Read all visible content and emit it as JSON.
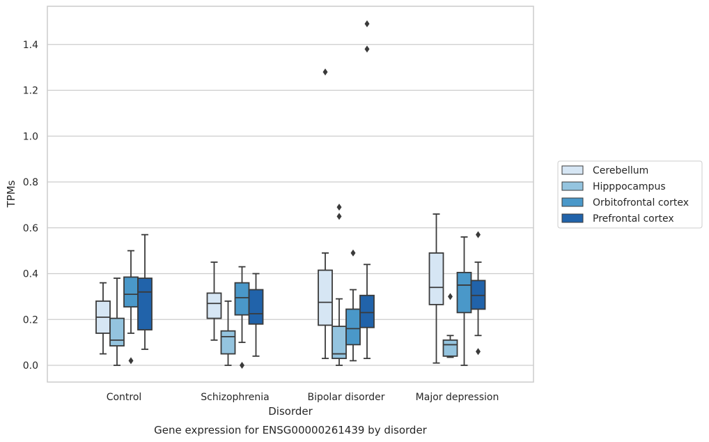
{
  "chart_data": {
    "type": "boxplot",
    "title": "Gene expression for ENSG00000261439 by disorder",
    "xlabel": "Disorder",
    "ylabel": "TPMs",
    "ylim": [
      -0.07,
      1.57
    ],
    "yticks": [
      "0.0",
      "0.2",
      "0.4",
      "0.6",
      "0.8",
      "1.0",
      "1.2",
      "1.4"
    ],
    "ytick_values": [
      0.0,
      0.2,
      0.4,
      0.6,
      0.8,
      1.0,
      1.2,
      1.4
    ],
    "grid": "horizontal",
    "legend_position": "right",
    "categories": [
      "Control",
      "Schizophrenia",
      "Bipolar disorder",
      "Major depression"
    ],
    "series": [
      {
        "name": "Cerebellum",
        "color": "#d6e6f4",
        "boxes": [
          {
            "whislo": 0.05,
            "q1": 0.14,
            "med": 0.21,
            "q3": 0.28,
            "whishi": 0.36,
            "fliers": []
          },
          {
            "whislo": 0.11,
            "q1": 0.205,
            "med": 0.27,
            "q3": 0.315,
            "whishi": 0.45,
            "fliers": []
          },
          {
            "whislo": 0.03,
            "q1": 0.175,
            "med": 0.275,
            "q3": 0.415,
            "whishi": 0.49,
            "fliers": [
              1.28
            ]
          },
          {
            "whislo": 0.01,
            "q1": 0.265,
            "med": 0.34,
            "q3": 0.49,
            "whishi": 0.66,
            "fliers": []
          }
        ]
      },
      {
        "name": "Hipppocampus",
        "color": "#94c4df",
        "boxes": [
          {
            "whislo": 0.0,
            "q1": 0.085,
            "med": 0.11,
            "q3": 0.205,
            "whishi": 0.38,
            "fliers": []
          },
          {
            "whislo": 0.0,
            "q1": 0.05,
            "med": 0.125,
            "q3": 0.15,
            "whishi": 0.28,
            "fliers": []
          },
          {
            "whislo": 0.0,
            "q1": 0.03,
            "med": 0.05,
            "q3": 0.17,
            "whishi": 0.29,
            "fliers": [
              0.65,
              0.69
            ]
          },
          {
            "whislo": 0.035,
            "q1": 0.04,
            "med": 0.09,
            "q3": 0.11,
            "whishi": 0.13,
            "fliers": [
              0.3
            ]
          }
        ]
      },
      {
        "name": "Orbitofrontal cortex",
        "color": "#4a98c9",
        "boxes": [
          {
            "whislo": 0.14,
            "q1": 0.255,
            "med": 0.31,
            "q3": 0.385,
            "whishi": 0.5,
            "fliers": [
              0.02
            ]
          },
          {
            "whislo": 0.1,
            "q1": 0.22,
            "med": 0.295,
            "q3": 0.36,
            "whishi": 0.43,
            "fliers": [
              0.0
            ]
          },
          {
            "whislo": 0.02,
            "q1": 0.09,
            "med": 0.16,
            "q3": 0.245,
            "whishi": 0.33,
            "fliers": [
              0.49
            ]
          },
          {
            "whislo": 0.0,
            "q1": 0.23,
            "med": 0.35,
            "q3": 0.405,
            "whishi": 0.56,
            "fliers": []
          }
        ]
      },
      {
        "name": "Prefrontal cortex",
        "color": "#2163aa",
        "boxes": [
          {
            "whislo": 0.07,
            "q1": 0.155,
            "med": 0.32,
            "q3": 0.38,
            "whishi": 0.57,
            "fliers": []
          },
          {
            "whislo": 0.04,
            "q1": 0.18,
            "med": 0.225,
            "q3": 0.33,
            "whishi": 0.4,
            "fliers": []
          },
          {
            "whislo": 0.03,
            "q1": 0.165,
            "med": 0.23,
            "q3": 0.305,
            "whishi": 0.44,
            "fliers": [
              1.38,
              1.49
            ]
          },
          {
            "whislo": 0.13,
            "q1": 0.245,
            "med": 0.305,
            "q3": 0.37,
            "whishi": 0.45,
            "fliers": [
              0.06,
              0.57
            ]
          }
        ]
      }
    ]
  }
}
